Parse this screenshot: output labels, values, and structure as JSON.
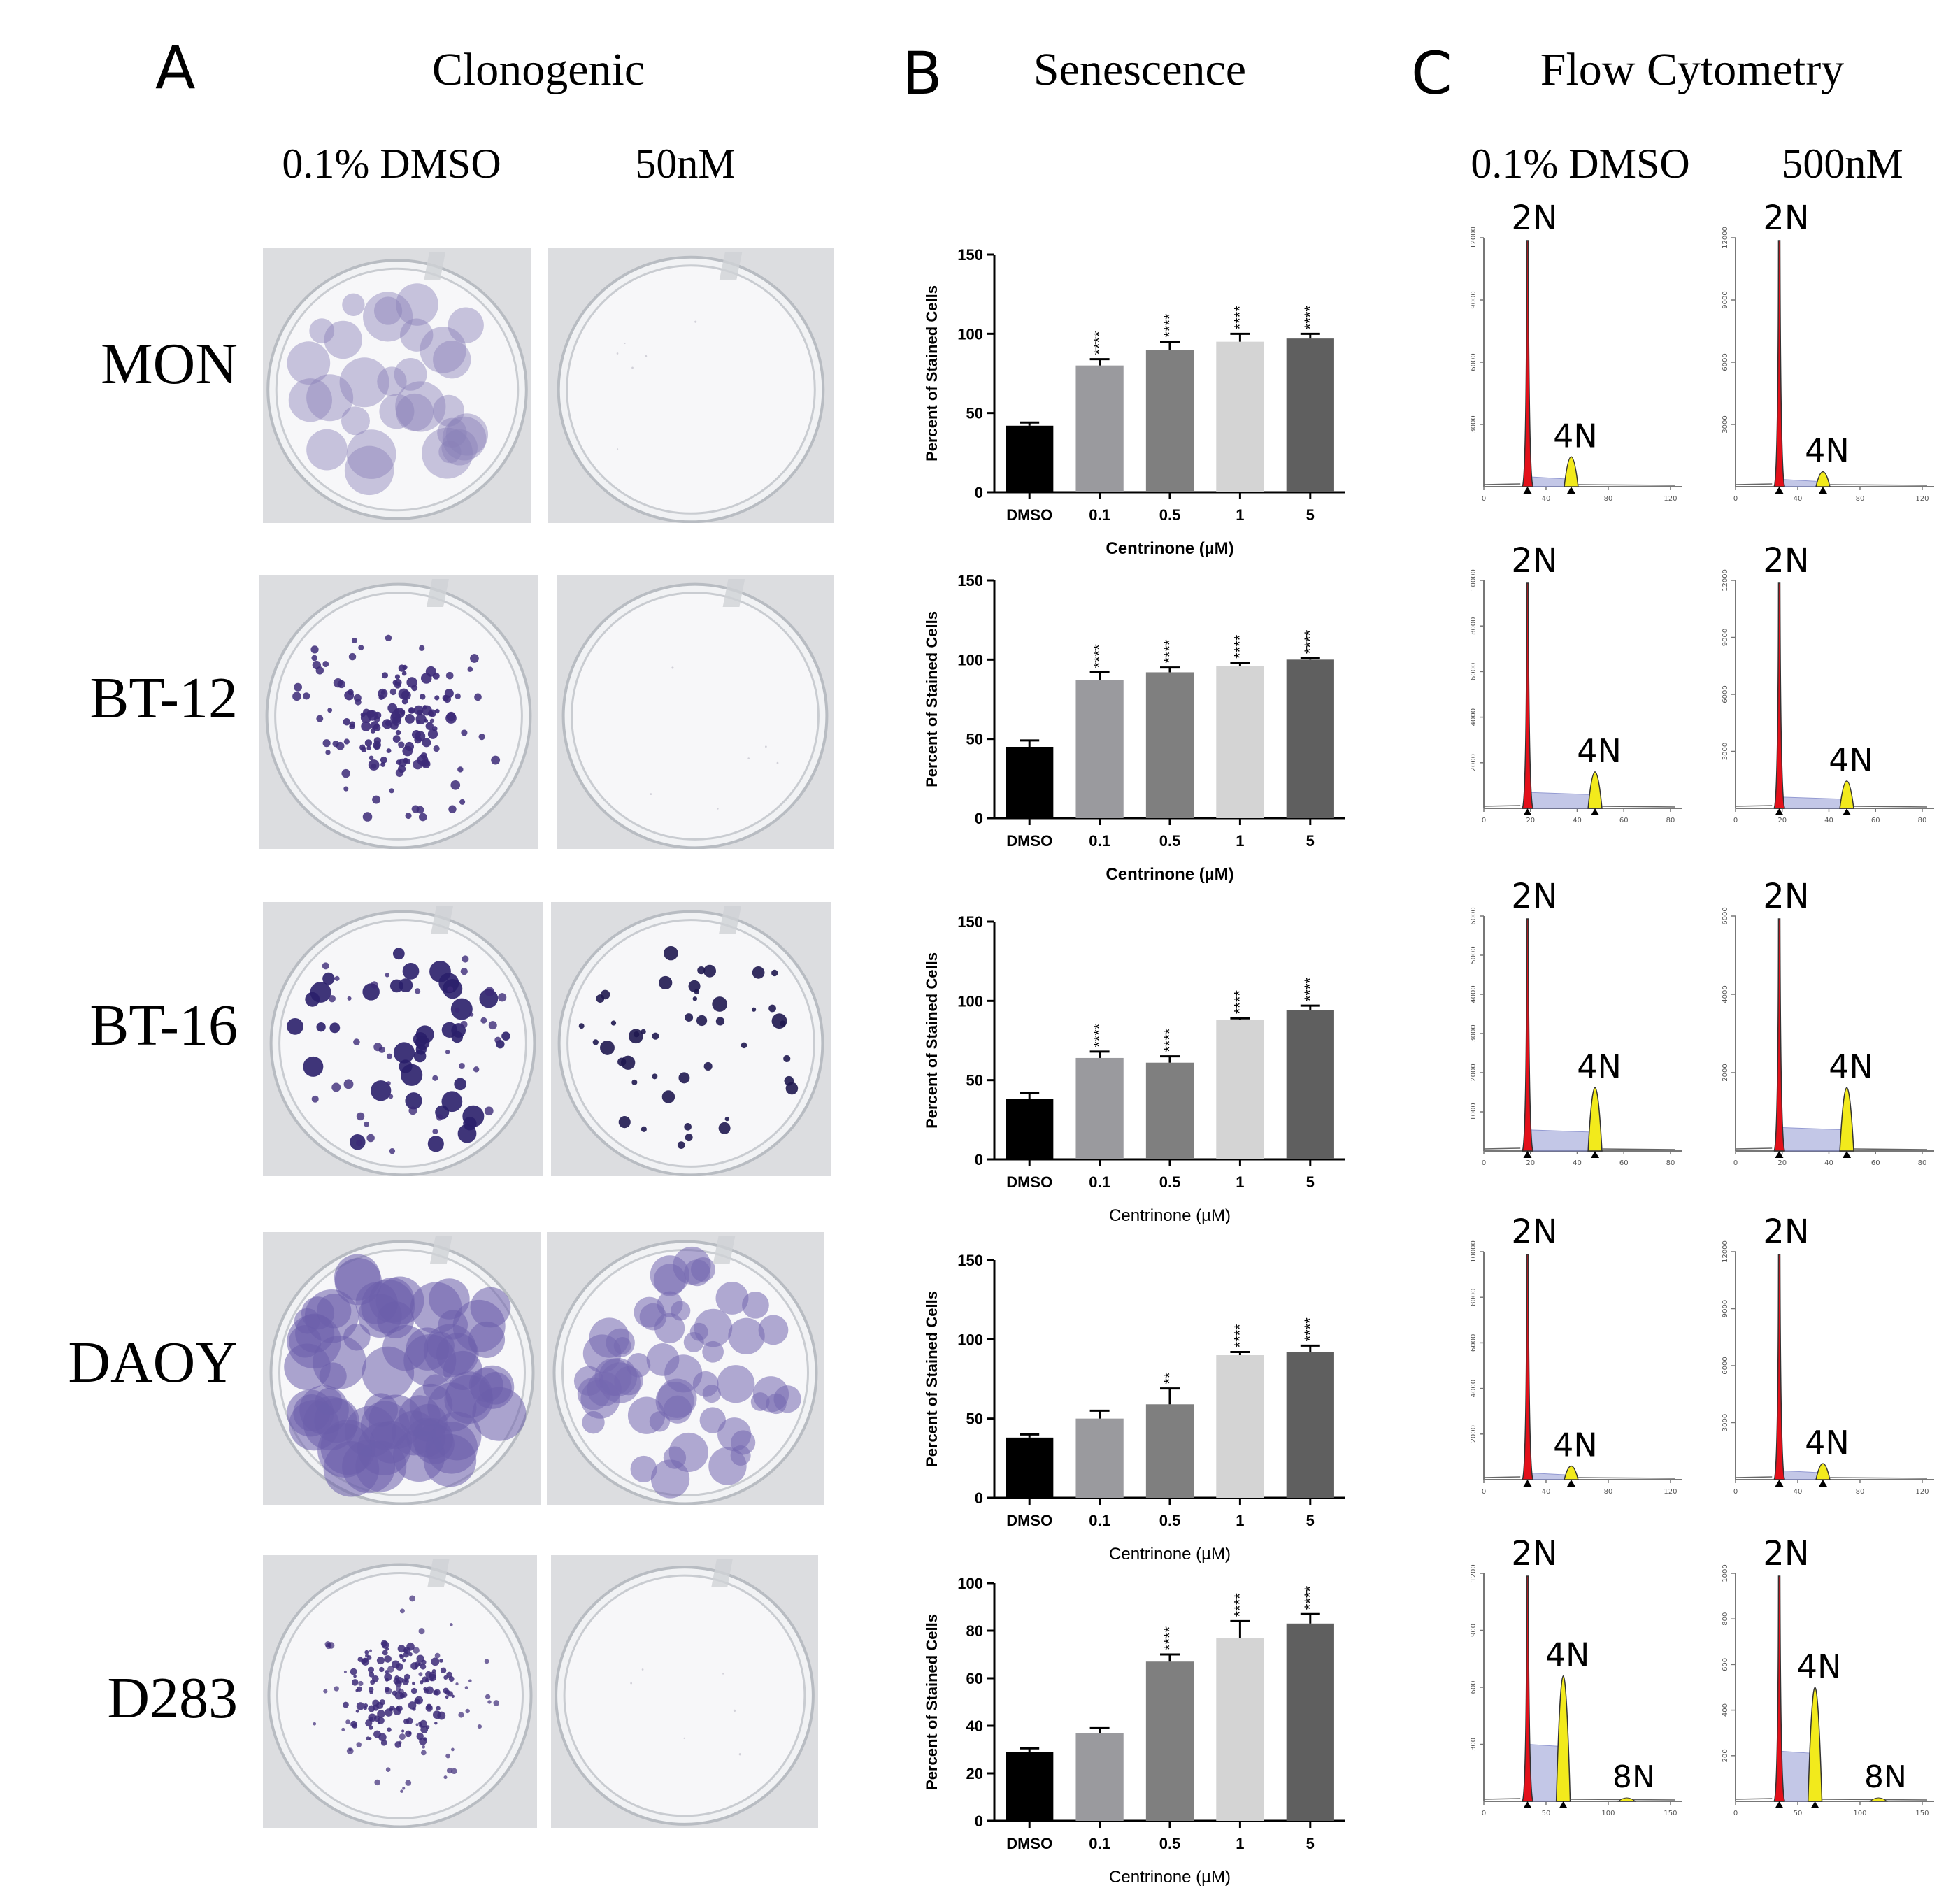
{
  "panels": {
    "a": {
      "letter": "A",
      "title": "Clonogenic",
      "col_labels": [
        "0.1% DMSO",
        "50nM"
      ]
    },
    "b": {
      "letter": "B",
      "title": "Senescence"
    },
    "c": {
      "letter": "C",
      "title": "Flow Cytometry",
      "col_labels": [
        "0.1% DMSO",
        "500nM"
      ]
    }
  },
  "row_labels": [
    "MON",
    "BT-12",
    "BT-16",
    "DAOY",
    "D283"
  ],
  "colors": {
    "bar_dmso": "#000000",
    "bar_01": "#9a9a9e",
    "bar_05": "#7f7f7f",
    "bar_1": "#d4d4d4",
    "bar_5": "#5f5f5f",
    "stain": "#3c2a78",
    "stain_light": "#8a80b8",
    "g1_peak": "#e3101a",
    "g2_peak": "#f2ea1c",
    "s_phase": "#aab0dd"
  },
  "chart_data": [
    {
      "type": "bar",
      "cell_line": "MON",
      "categories": [
        "DMSO",
        "0.1",
        "0.5",
        "1",
        "5"
      ],
      "values": [
        42,
        80,
        90,
        95,
        97
      ],
      "errors": [
        2,
        4,
        5,
        5,
        3
      ],
      "significance": [
        "",
        "****",
        "****",
        "****",
        "****"
      ],
      "ylabel": "Percent of  Stained Cells",
      "xlabel": "Centrinone (µM)",
      "ylim": [
        0,
        150
      ],
      "yticks": [
        0,
        50,
        100,
        150
      ]
    },
    {
      "type": "bar",
      "cell_line": "BT-12",
      "categories": [
        "DMSO",
        "0.1",
        "0.5",
        "1",
        "5"
      ],
      "values": [
        45,
        87,
        92,
        96,
        100
      ],
      "errors": [
        4,
        5,
        3,
        2,
        1
      ],
      "significance": [
        "",
        "****",
        "****",
        "****",
        "****"
      ],
      "ylabel": "Percent of  Stained Cells",
      "xlabel": "Centrinone (µM)",
      "ylim": [
        0,
        150
      ],
      "yticks": [
        0,
        50,
        100,
        150
      ]
    },
    {
      "type": "bar",
      "cell_line": "BT-16",
      "categories": [
        "DMSO",
        "0.1",
        "0.5",
        "1",
        "5"
      ],
      "values": [
        38,
        64,
        61,
        88,
        94
      ],
      "errors": [
        4,
        4,
        4,
        1,
        3
      ],
      "significance": [
        "",
        "****",
        "****",
        "****",
        "****"
      ],
      "ylabel": "Percent of  Stained Cells",
      "xlabel": "Centrinone (µM)",
      "ylim": [
        0,
        150
      ],
      "yticks": [
        0,
        50,
        100,
        150
      ]
    },
    {
      "type": "bar",
      "cell_line": "DAOY",
      "categories": [
        "DMSO",
        "0.1",
        "0.5",
        "1",
        "5"
      ],
      "values": [
        38,
        50,
        59,
        90,
        92
      ],
      "errors": [
        2,
        5,
        10,
        2,
        4
      ],
      "significance": [
        "",
        "",
        "**",
        "****",
        "****"
      ],
      "ylabel": "Percent of  Stained Cells",
      "xlabel": "Centrinone (µM)",
      "ylim": [
        0,
        150
      ],
      "yticks": [
        0,
        50,
        100,
        150
      ]
    },
    {
      "type": "bar",
      "cell_line": "D283",
      "categories": [
        "DMSO",
        "0.1",
        "0.5",
        "1",
        "5"
      ],
      "values": [
        29,
        37,
        67,
        77,
        83
      ],
      "errors": [
        1.5,
        2,
        3,
        7,
        4
      ],
      "significance": [
        "",
        "",
        "****",
        "****",
        "****"
      ],
      "ylabel": "Percent of  Stained Cells",
      "xlabel": "Centrinone (µM)",
      "ylim": [
        0,
        100
      ],
      "yticks": [
        0,
        20,
        40,
        60,
        80,
        100
      ]
    }
  ],
  "flow_rows": [
    {
      "cell_line": "MON",
      "dmso": {
        "xticks": [
          "0",
          "40",
          "80",
          "120"
        ],
        "yticks": [
          "3000",
          "6000",
          "9000",
          "12000"
        ],
        "peaks": [
          "2N",
          "4N"
        ],
        "g1_height": 1.0,
        "g2_height": 0.12,
        "g2_position": 0.22,
        "s_level": 0.04
      },
      "treated": {
        "xticks": [
          "0",
          "40",
          "80",
          "120"
        ],
        "yticks": [
          "3000",
          "6000",
          "9000",
          "12000"
        ],
        "peaks": [
          "2N",
          "4N"
        ],
        "g1_height": 1.0,
        "g2_height": 0.06,
        "g2_position": 0.22,
        "s_level": 0.03
      }
    },
    {
      "cell_line": "BT-12",
      "dmso": {
        "xticks": [
          "0",
          "20",
          "40",
          "60",
          "80"
        ],
        "yticks": [
          "2000",
          "4000",
          "6000",
          "8000",
          "10000"
        ],
        "peaks": [
          "2N",
          "4N"
        ],
        "g1_height": 1.0,
        "g2_height": 0.16,
        "g2_position": 0.34,
        "s_level": 0.07
      },
      "treated": {
        "xticks": [
          "0",
          "20",
          "40",
          "60",
          "80"
        ],
        "yticks": [
          "3000",
          "6000",
          "9000",
          "12000"
        ],
        "peaks": [
          "2N",
          "4N"
        ],
        "g1_height": 1.0,
        "g2_height": 0.12,
        "g2_position": 0.34,
        "s_level": 0.05
      }
    },
    {
      "cell_line": "BT-16",
      "dmso": {
        "xticks": [
          "0",
          "20",
          "40",
          "60",
          "80"
        ],
        "yticks": [
          "1000",
          "2000",
          "3000",
          "4000",
          "5000",
          "6000"
        ],
        "peaks": [
          "2N",
          "4N"
        ],
        "g1_height": 1.0,
        "g2_height": 0.27,
        "g2_position": 0.34,
        "s_level": 0.09
      },
      "treated": {
        "xticks": [
          "0",
          "20",
          "40",
          "60",
          "80"
        ],
        "yticks": [
          "2000",
          "4000",
          "6000"
        ],
        "peaks": [
          "2N",
          "4N"
        ],
        "g1_height": 1.0,
        "g2_height": 0.27,
        "g2_position": 0.34,
        "s_level": 0.1
      }
    },
    {
      "cell_line": "DAOY",
      "dmso": {
        "xticks": [
          "0",
          "40",
          "80",
          "120"
        ],
        "yticks": [
          "2000",
          "4000",
          "6000",
          "8000",
          "10000"
        ],
        "peaks": [
          "2N",
          "4N"
        ],
        "g1_height": 1.0,
        "g2_height": 0.06,
        "g2_position": 0.22,
        "s_level": 0.03
      },
      "treated": {
        "xticks": [
          "0",
          "40",
          "80",
          "120"
        ],
        "yticks": [
          "3000",
          "6000",
          "9000",
          "12000"
        ],
        "peaks": [
          "2N",
          "4N"
        ],
        "g1_height": 1.0,
        "g2_height": 0.07,
        "g2_position": 0.22,
        "s_level": 0.04
      }
    },
    {
      "cell_line": "D283",
      "dmso": {
        "xticks": [
          "0",
          "50",
          "100",
          "150"
        ],
        "yticks": [
          "300",
          "600",
          "900",
          "1200"
        ],
        "peaks": [
          "2N",
          "4N",
          "8N"
        ],
        "g1_height": 1.0,
        "g2_height": 0.55,
        "g2_position": 0.18,
        "s_level": 0.25
      },
      "treated": {
        "xticks": [
          "0",
          "50",
          "100",
          "150"
        ],
        "yticks": [
          "200",
          "400",
          "600",
          "800",
          "1000"
        ],
        "peaks": [
          "2N",
          "4N",
          "8N"
        ],
        "g1_height": 1.0,
        "g2_height": 0.5,
        "g2_position": 0.18,
        "s_level": 0.22
      }
    }
  ]
}
